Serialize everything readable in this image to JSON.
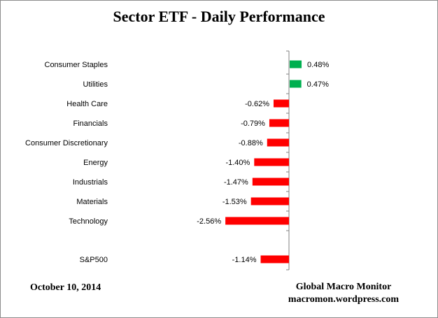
{
  "title": "Sector ETF - Daily Performance",
  "footer": {
    "date": "October 10, 2014",
    "brand_line1": "Global Macro Monitor",
    "brand_line2": "macromon.wordpress.com"
  },
  "colors": {
    "positive": "#00b050",
    "negative": "#ff0000",
    "axis": "#808080"
  },
  "chart_data": {
    "type": "bar",
    "orientation": "horizontal",
    "categories": [
      "Consumer Staples",
      "Utilities",
      "Health Care",
      "Financials",
      "Consumer Discretionary",
      "Energy",
      "Industrials",
      "Materials",
      "Technology",
      "S&P500"
    ],
    "values": [
      0.48,
      0.47,
      -0.62,
      -0.79,
      -0.88,
      -1.4,
      -1.47,
      -1.53,
      -2.56,
      -1.14
    ],
    "labels": [
      "0.48%",
      "0.47%",
      "-0.62%",
      "-0.79%",
      "-0.88%",
      "-1.40%",
      "-1.47%",
      "-1.53%",
      "-2.56%",
      "-1.14%"
    ],
    "unit": "%",
    "title": "Sector ETF - Daily Performance",
    "xlabel": "",
    "ylabel": "",
    "grid": false,
    "legend": "none"
  }
}
